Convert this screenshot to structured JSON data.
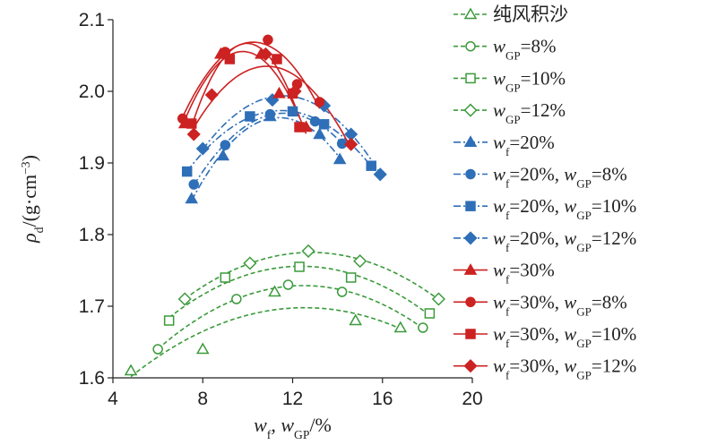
{
  "chart_data": {
    "type": "line",
    "xlabel": "w_f, w_GP/%",
    "ylabel": "ρ_d/(g·cm⁻³)",
    "xlim": [
      4,
      20
    ],
    "ylim": [
      1.6,
      2.1
    ],
    "xticks": [
      4,
      8,
      12,
      16,
      20
    ],
    "yticks": [
      1.6,
      1.7,
      1.8,
      1.9,
      2.0,
      2.1
    ],
    "grid": false,
    "legend_position": "right",
    "series": [
      {
        "name": "纯风积沙",
        "color": "#3a9a3a",
        "marker": "triangle",
        "filled": false,
        "dash": "dashed",
        "points": [
          [
            4.8,
            1.61
          ],
          [
            8.0,
            1.64
          ],
          [
            11.2,
            1.72
          ],
          [
            14.8,
            1.68
          ],
          [
            16.8,
            1.67
          ]
        ]
      },
      {
        "name": "w_GP=8%",
        "color": "#3a9a3a",
        "marker": "circle",
        "filled": false,
        "dash": "dashed",
        "points": [
          [
            6.0,
            1.64
          ],
          [
            9.5,
            1.71
          ],
          [
            11.8,
            1.73
          ],
          [
            14.2,
            1.72
          ],
          [
            17.8,
            1.67
          ]
        ]
      },
      {
        "name": "w_GP=10%",
        "color": "#3a9a3a",
        "marker": "square",
        "filled": false,
        "dash": "dashed",
        "points": [
          [
            6.5,
            1.68
          ],
          [
            9.0,
            1.74
          ],
          [
            12.3,
            1.755
          ],
          [
            14.6,
            1.74
          ],
          [
            18.1,
            1.69
          ]
        ]
      },
      {
        "name": "w_GP=12%",
        "color": "#3a9a3a",
        "marker": "diamond",
        "filled": false,
        "dash": "dashed",
        "points": [
          [
            7.2,
            1.71
          ],
          [
            10.1,
            1.76
          ],
          [
            12.7,
            1.777
          ],
          [
            15.0,
            1.763
          ],
          [
            18.5,
            1.71
          ]
        ]
      },
      {
        "name": "w_f=20%",
        "color": "#2f6fb8",
        "marker": "triangle",
        "filled": true,
        "dash": "dashdot",
        "points": [
          [
            7.5,
            1.85
          ],
          [
            8.9,
            1.91
          ],
          [
            11.0,
            1.965
          ],
          [
            13.2,
            1.94
          ],
          [
            14.1,
            1.905
          ]
        ]
      },
      {
        "name": "w_f=20%, w_GP=8%",
        "color": "#2f6fb8",
        "marker": "circle",
        "filled": true,
        "dash": "dashdot",
        "points": [
          [
            7.6,
            1.87
          ],
          [
            9.0,
            1.925
          ],
          [
            11.0,
            1.968
          ],
          [
            13.0,
            1.958
          ],
          [
            14.2,
            1.927
          ]
        ]
      },
      {
        "name": "w_f=20%, w_GP=10%",
        "color": "#2f6fb8",
        "marker": "square",
        "filled": true,
        "dash": "dashdot",
        "points": [
          [
            7.3,
            1.888
          ],
          [
            10.1,
            1.965
          ],
          [
            12.0,
            1.972
          ],
          [
            13.4,
            1.954
          ],
          [
            15.5,
            1.896
          ]
        ]
      },
      {
        "name": "w_f=20%, w_GP=12%",
        "color": "#2f6fb8",
        "marker": "diamond",
        "filled": true,
        "dash": "dashdot",
        "points": [
          [
            8.0,
            1.92
          ],
          [
            11.1,
            1.988
          ],
          [
            13.4,
            1.98
          ],
          [
            14.6,
            1.94
          ],
          [
            15.9,
            1.884
          ]
        ]
      },
      {
        "name": "w_f=30%",
        "color": "#cc2222",
        "marker": "triangle",
        "filled": true,
        "dash": "solid",
        "points": [
          [
            7.2,
            1.955
          ],
          [
            8.8,
            2.052
          ],
          [
            10.6,
            2.052
          ],
          [
            11.4,
            1.997
          ],
          [
            12.6,
            1.95
          ]
        ]
      },
      {
        "name": "w_f=30%, w_GP=8%",
        "color": "#cc2222",
        "marker": "circle",
        "filled": true,
        "dash": "solid",
        "points": [
          [
            7.1,
            1.962
          ],
          [
            9.0,
            2.055
          ],
          [
            10.9,
            2.072
          ],
          [
            12.2,
            2.01
          ],
          [
            13.2,
            1.985
          ]
        ]
      },
      {
        "name": "w_f=30%, w_GP=10%",
        "color": "#cc2222",
        "marker": "square",
        "filled": true,
        "dash": "solid",
        "points": [
          [
            7.5,
            1.955
          ],
          [
            9.2,
            2.045
          ],
          [
            11.3,
            2.045
          ],
          [
            12.0,
            1.997
          ],
          [
            12.3,
            1.95
          ]
        ]
      },
      {
        "name": "w_f=30%, w_GP=12%",
        "color": "#cc2222",
        "marker": "diamond",
        "filled": true,
        "dash": "solid",
        "points": [
          [
            7.6,
            1.94
          ],
          [
            8.4,
            1.995
          ],
          [
            10.8,
            2.052
          ],
          [
            12.1,
            2.0
          ],
          [
            14.6,
            1.926
          ]
        ]
      }
    ]
  },
  "legend": [
    {
      "parts": [
        {
          "t": "纯风积沙",
          "style": "cjk"
        }
      ]
    },
    {
      "parts": [
        {
          "t": "w",
          "style": "it"
        },
        {
          "t": "GP",
          "style": "sub"
        },
        {
          "t": "=8%",
          "style": "n"
        }
      ]
    },
    {
      "parts": [
        {
          "t": "w",
          "style": "it"
        },
        {
          "t": "GP",
          "style": "sub"
        },
        {
          "t": "=10%",
          "style": "n"
        }
      ]
    },
    {
      "parts": [
        {
          "t": "w",
          "style": "it"
        },
        {
          "t": "GP",
          "style": "sub"
        },
        {
          "t": "=12%",
          "style": "n"
        }
      ]
    },
    {
      "parts": [
        {
          "t": "w",
          "style": "it"
        },
        {
          "t": "f",
          "style": "sub"
        },
        {
          "t": "=20%",
          "style": "n"
        }
      ]
    },
    {
      "parts": [
        {
          "t": "w",
          "style": "it"
        },
        {
          "t": "f",
          "style": "sub"
        },
        {
          "t": "=20%, ",
          "style": "n"
        },
        {
          "t": "w",
          "style": "it"
        },
        {
          "t": "GP",
          "style": "sub"
        },
        {
          "t": "=8%",
          "style": "n"
        }
      ]
    },
    {
      "parts": [
        {
          "t": "w",
          "style": "it"
        },
        {
          "t": "f",
          "style": "sub"
        },
        {
          "t": "=20%, ",
          "style": "n"
        },
        {
          "t": "w",
          "style": "it"
        },
        {
          "t": "GP",
          "style": "sub"
        },
        {
          "t": "=10%",
          "style": "n"
        }
      ]
    },
    {
      "parts": [
        {
          "t": "w",
          "style": "it"
        },
        {
          "t": "f",
          "style": "sub"
        },
        {
          "t": "=20%, ",
          "style": "n"
        },
        {
          "t": "w",
          "style": "it"
        },
        {
          "t": "GP",
          "style": "sub"
        },
        {
          "t": "=12%",
          "style": "n"
        }
      ]
    },
    {
      "parts": [
        {
          "t": "w",
          "style": "it"
        },
        {
          "t": "f",
          "style": "sub"
        },
        {
          "t": "=30%",
          "style": "n"
        }
      ]
    },
    {
      "parts": [
        {
          "t": "w",
          "style": "it"
        },
        {
          "t": "f",
          "style": "sub"
        },
        {
          "t": "=30%, ",
          "style": "n"
        },
        {
          "t": "w",
          "style": "it"
        },
        {
          "t": "GP",
          "style": "sub"
        },
        {
          "t": "=8%",
          "style": "n"
        }
      ]
    },
    {
      "parts": [
        {
          "t": "w",
          "style": "it"
        },
        {
          "t": "f",
          "style": "sub"
        },
        {
          "t": "=30%, ",
          "style": "n"
        },
        {
          "t": "w",
          "style": "it"
        },
        {
          "t": "GP",
          "style": "sub"
        },
        {
          "t": "=10%",
          "style": "n"
        }
      ]
    },
    {
      "parts": [
        {
          "t": "w",
          "style": "it"
        },
        {
          "t": "f",
          "style": "sub"
        },
        {
          "t": "=30%, ",
          "style": "n"
        },
        {
          "t": "w",
          "style": "it"
        },
        {
          "t": "GP",
          "style": "sub"
        },
        {
          "t": "=12%",
          "style": "n"
        }
      ]
    }
  ],
  "axis_text": {
    "x": [
      {
        "t": "w",
        "style": "it"
      },
      {
        "t": "f",
        "style": "sub"
      },
      {
        "t": ", ",
        "style": "n"
      },
      {
        "t": "w",
        "style": "it"
      },
      {
        "t": "GP",
        "style": "sub"
      },
      {
        "t": "/%",
        "style": "n"
      }
    ],
    "y": [
      {
        "t": "ρ",
        "style": "it"
      },
      {
        "t": "d",
        "style": "sub"
      },
      {
        "t": "/(g·cm",
        "style": "n"
      },
      {
        "t": "−3",
        "style": "sup"
      },
      {
        "t": ")",
        "style": "n"
      }
    ]
  }
}
